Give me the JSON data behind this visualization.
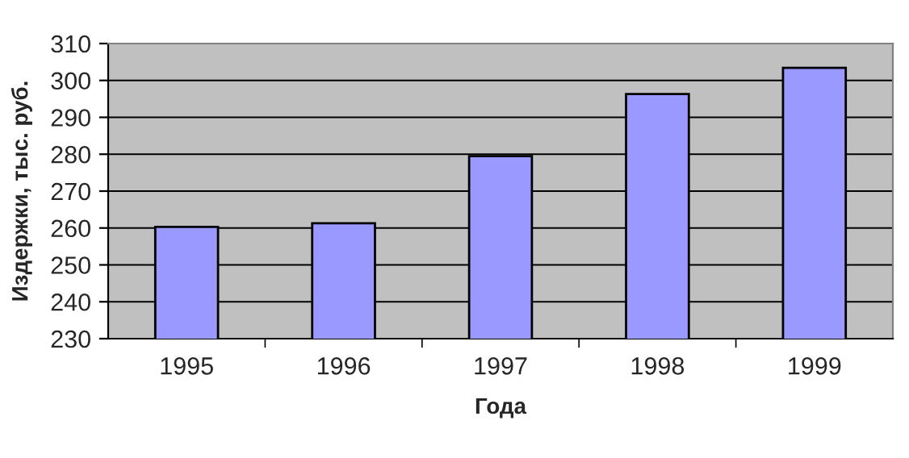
{
  "chart_data": {
    "type": "bar",
    "xlabel": "Года",
    "ylabel": "Издержки, тыс. руб.",
    "categories": [
      "1995",
      "1996",
      "1997",
      "1998",
      "1999"
    ],
    "values": [
      260.3,
      261.3,
      279.5,
      296.3,
      303.4
    ],
    "color": "#9999ff",
    "ylim": [
      230,
      310
    ],
    "yticks": [
      230,
      240,
      250,
      260,
      270,
      280,
      290,
      300,
      310
    ],
    "grid": "y",
    "legend": false
  }
}
